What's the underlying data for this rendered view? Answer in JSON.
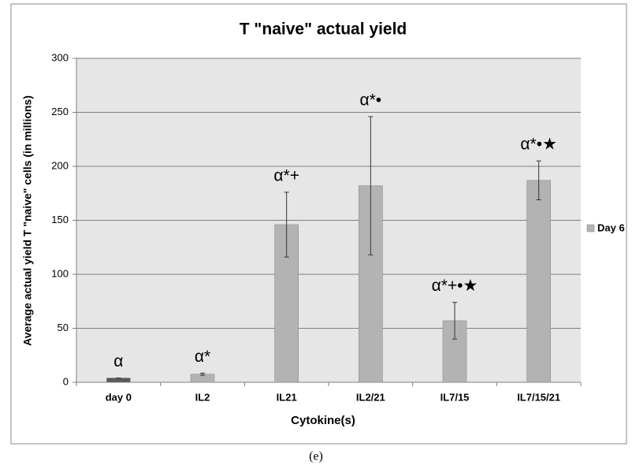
{
  "chart_data": {
    "type": "bar",
    "title": "T \"naive\" actual yield",
    "x_label": "Cytokine(s)",
    "y_label": "Average actual yield T \"naive\" cells (in millions)",
    "categories": [
      "day 0",
      "IL2",
      "IL21",
      "IL2/21",
      "IL7/15",
      "IL7/15/21"
    ],
    "series": [
      {
        "name": "Day 6",
        "color": "#b3b3b3",
        "point_colors": [
          "#5a5a5a",
          "#b3b3b3",
          "#b3b3b3",
          "#b3b3b3",
          "#b3b3b3",
          "#b3b3b3"
        ],
        "values": [
          4,
          7.5,
          146,
          182,
          57,
          187
        ],
        "errors": [
          0,
          1,
          30,
          64,
          17,
          18
        ]
      }
    ],
    "annotations": [
      "α",
      "α*",
      "α*+",
      "α*•",
      "α*+•★",
      "α*•★"
    ],
    "ylim": [
      0,
      300
    ],
    "yticks": [
      0,
      50,
      100,
      150,
      200,
      250,
      300
    ],
    "grid": true,
    "legend": "right",
    "caption": "(e)"
  }
}
